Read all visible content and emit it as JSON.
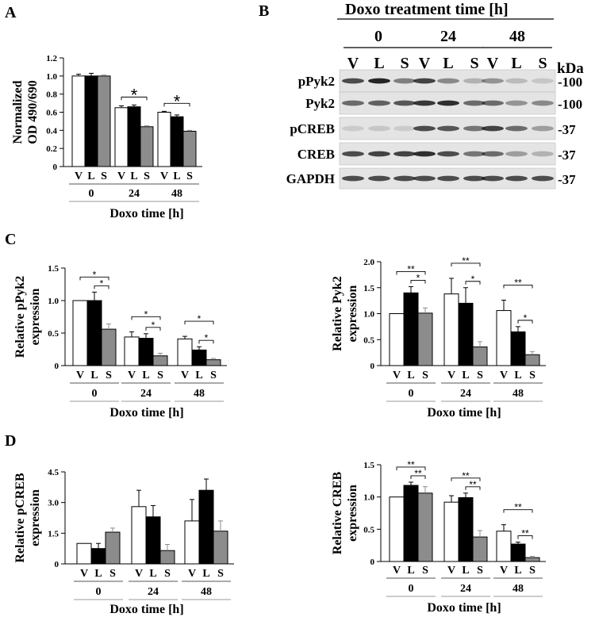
{
  "panels": {
    "a": "A",
    "b": "B",
    "c": "C",
    "d": "D"
  },
  "colors": {
    "V": "#ffffff",
    "L": "#000000",
    "S": "#8c8c8c"
  },
  "blot": {
    "title": "Doxo treatment time [h]",
    "time_groups": [
      "0",
      "24",
      "48"
    ],
    "lane_labels": [
      "V",
      "L",
      "S",
      "V",
      "L",
      "S",
      "V",
      "L",
      "S"
    ],
    "kda_label": "kDa",
    "rows": [
      {
        "name": "pPyk2",
        "marker": "-100"
      },
      {
        "name": "Pyk2",
        "marker": "-100"
      },
      {
        "name": "pCREB",
        "marker": "-37"
      },
      {
        "name": "CREB",
        "marker": "-37"
      },
      {
        "name": "GAPDH",
        "marker": "-37"
      }
    ]
  },
  "chart_data": [
    {
      "id": "A",
      "type": "bar",
      "ylabel": "Normalized OD 490/690",
      "xlabel": "Doxo time [h]",
      "groups": [
        "0",
        "24",
        "48"
      ],
      "bar_labels": [
        "V",
        "L",
        "S"
      ],
      "ylim": [
        0,
        1.2
      ],
      "yticks": [
        "0",
        "0.2",
        "0.4",
        "0.6",
        "0.8",
        "1.0",
        "1.2"
      ],
      "values": [
        [
          1.0,
          1.0,
          1.0
        ],
        [
          0.65,
          0.66,
          0.44
        ],
        [
          0.6,
          0.55,
          0.39
        ]
      ],
      "errors": [
        [
          0.02,
          0.03,
          0.01
        ],
        [
          0.02,
          0.02,
          0.01
        ],
        [
          0.01,
          0.02,
          0.01
        ]
      ],
      "significance": [
        {
          "group": 1,
          "from": 0,
          "to": 2,
          "label": "*"
        },
        {
          "group": 2,
          "from": 0,
          "to": 2,
          "label": "*"
        }
      ]
    },
    {
      "id": "C1",
      "type": "bar",
      "ylabel": "Relative pPyk2 expression",
      "xlabel": "Doxo time [h]",
      "groups": [
        "0",
        "24",
        "48"
      ],
      "bar_labels": [
        "V",
        "L",
        "S"
      ],
      "ylim": [
        0,
        1.5
      ],
      "yticks": [
        "0",
        "0.5",
        "1.0",
        "1.5"
      ],
      "values": [
        [
          1.0,
          1.0,
          0.56
        ],
        [
          0.44,
          0.42,
          0.15
        ],
        [
          0.41,
          0.24,
          0.09
        ]
      ],
      "errors": [
        [
          0.0,
          0.13,
          0.08
        ],
        [
          0.08,
          0.07,
          0.04
        ],
        [
          0.04,
          0.05,
          0.02
        ]
      ],
      "significance": [
        {
          "group": 0,
          "from": 0,
          "to": 2,
          "label": "*"
        },
        {
          "group": 0,
          "from": 1,
          "to": 2,
          "label": "*"
        },
        {
          "group": 1,
          "from": 0,
          "to": 2,
          "label": "*"
        },
        {
          "group": 1,
          "from": 1,
          "to": 2,
          "label": "*"
        },
        {
          "group": 2,
          "from": 0,
          "to": 2,
          "label": "*"
        },
        {
          "group": 2,
          "from": 1,
          "to": 2,
          "label": "*"
        }
      ]
    },
    {
      "id": "C2",
      "type": "bar",
      "ylabel": "Relative Pyk2 expression",
      "xlabel": "Doxo time [h]",
      "groups": [
        "0",
        "24",
        "48"
      ],
      "bar_labels": [
        "V",
        "L",
        "S"
      ],
      "ylim": [
        0,
        2.0
      ],
      "yticks": [
        "0",
        "0.5",
        "1.0",
        "1.5",
        "2.0"
      ],
      "values": [
        [
          1.0,
          1.4,
          1.01
        ],
        [
          1.38,
          1.2,
          0.36
        ],
        [
          1.06,
          0.65,
          0.21
        ]
      ],
      "errors": [
        [
          0.0,
          0.12,
          0.1
        ],
        [
          0.3,
          0.3,
          0.1
        ],
        [
          0.2,
          0.1,
          0.06
        ]
      ],
      "significance": [
        {
          "group": 0,
          "from": 0,
          "to": 2,
          "label": "**"
        },
        {
          "group": 0,
          "from": 1,
          "to": 2,
          "label": "*"
        },
        {
          "group": 1,
          "from": 0,
          "to": 2,
          "label": "**"
        },
        {
          "group": 1,
          "from": 1,
          "to": 2,
          "label": "*"
        },
        {
          "group": 2,
          "from": 0,
          "to": 2,
          "label": "**"
        },
        {
          "group": 2,
          "from": 1,
          "to": 2,
          "label": "*"
        }
      ]
    },
    {
      "id": "D1",
      "type": "bar",
      "ylabel": "Relative pCREB expression",
      "xlabel": "Doxo time [h]",
      "groups": [
        "0",
        "24",
        "48"
      ],
      "bar_labels": [
        "V",
        "L",
        "S"
      ],
      "ylim": [
        0,
        4.5
      ],
      "yticks": [
        "0",
        "1.5",
        "3.0",
        "4.5"
      ],
      "values": [
        [
          1.0,
          0.75,
          1.55
        ],
        [
          2.8,
          2.3,
          0.65
        ],
        [
          2.1,
          3.6,
          1.6
        ]
      ],
      "errors": [
        [
          0.0,
          0.25,
          0.2
        ],
        [
          0.8,
          0.55,
          0.3
        ],
        [
          1.05,
          0.55,
          0.5
        ]
      ],
      "significance": []
    },
    {
      "id": "D2",
      "type": "bar",
      "ylabel": "Relative CREB expression",
      "xlabel": "Doxo time [h]",
      "groups": [
        "0",
        "24",
        "48"
      ],
      "bar_labels": [
        "V",
        "L",
        "S"
      ],
      "ylim": [
        0,
        1.5
      ],
      "yticks": [
        "0",
        "0.5",
        "1.0",
        "1.5"
      ],
      "values": [
        [
          1.0,
          1.18,
          1.06
        ],
        [
          0.92,
          0.99,
          0.38
        ],
        [
          0.47,
          0.27,
          0.06
        ]
      ],
      "errors": [
        [
          0.0,
          0.05,
          0.1
        ],
        [
          0.1,
          0.07,
          0.1
        ],
        [
          0.1,
          0.03,
          0.02
        ]
      ],
      "significance": [
        {
          "group": 0,
          "from": 0,
          "to": 2,
          "label": "**"
        },
        {
          "group": 0,
          "from": 1,
          "to": 2,
          "label": "**"
        },
        {
          "group": 1,
          "from": 0,
          "to": 2,
          "label": "**"
        },
        {
          "group": 1,
          "from": 1,
          "to": 2,
          "label": "**"
        },
        {
          "group": 2,
          "from": 0,
          "to": 2,
          "label": "**"
        },
        {
          "group": 2,
          "from": 1,
          "to": 2,
          "label": "**"
        }
      ]
    }
  ]
}
